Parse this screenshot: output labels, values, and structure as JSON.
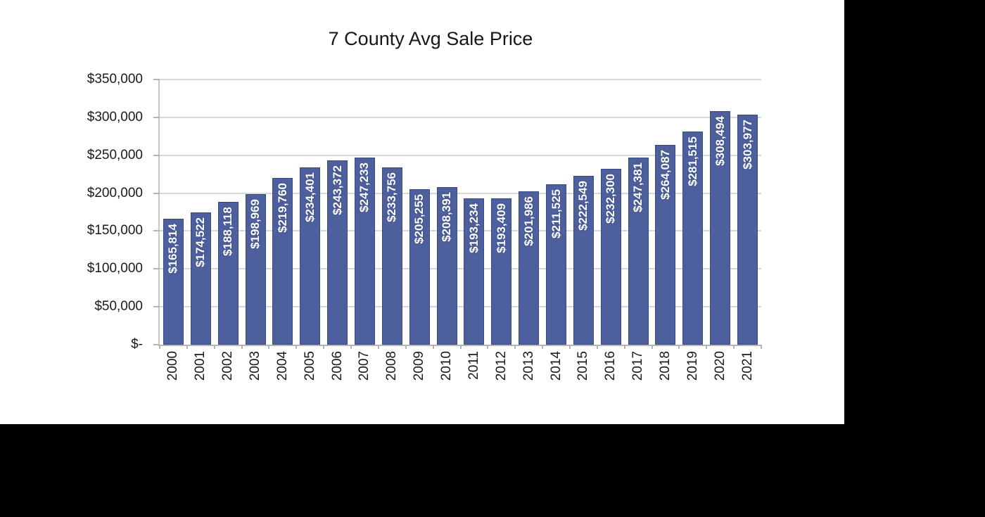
{
  "page": {
    "background_color": "#000000",
    "chart_background_color": "#ffffff"
  },
  "chart_data": {
    "type": "bar",
    "title": "7 County Avg Sale Price",
    "xlabel": "",
    "ylabel": "",
    "legend": "none",
    "grid": true,
    "ylim": [
      0,
      350000
    ],
    "categories": [
      "2000",
      "2001",
      "2002",
      "2003",
      "2004",
      "2005",
      "2006",
      "2007",
      "2008",
      "2009",
      "2010",
      "2011",
      "2012",
      "2013",
      "2014",
      "2015",
      "2016",
      "2017",
      "2018",
      "2019",
      "2020",
      "2021"
    ],
    "values": [
      165814,
      174522,
      188118,
      198969,
      219760,
      234401,
      243372,
      247233,
      233756,
      205255,
      208391,
      193234,
      193409,
      201986,
      211525,
      222549,
      232300,
      247381,
      264087,
      281515,
      308494,
      303977
    ],
    "data_labels": [
      "$165,814",
      "$174,522",
      "$188,118",
      "$198,969",
      "$219,760",
      "$234,401",
      "$243,372",
      "$247,233",
      "$233,756",
      "$205,255",
      "$208,391",
      "$193,234",
      "$193,409",
      "$201,986",
      "$211,525",
      "$222,549",
      "$232,300",
      "$247,381",
      "$264,087",
      "$281,515",
      "$308,494",
      "$303,977"
    ],
    "y_axis_ticks": [
      {
        "label": "$350,000",
        "value": 350000
      },
      {
        "label": "$300,000",
        "value": 300000
      },
      {
        "label": "$250,000",
        "value": 250000
      },
      {
        "label": "$200,000",
        "value": 200000
      },
      {
        "label": "$150,000",
        "value": 150000
      },
      {
        "label": "$100,000",
        "value": 100000
      },
      {
        "label": "$50,000",
        "value": 50000
      },
      {
        "label": "$-",
        "value": 0
      }
    ],
    "colors": {
      "bar_fill": "#4e5f9e",
      "bar_border": "#394a80",
      "data_label_text": "#ffffff",
      "gridline": "#d8d8d8",
      "axis_line": "#b5b5b5",
      "tick_label_text": "#1a1a1a",
      "title_text": "#171717"
    }
  }
}
